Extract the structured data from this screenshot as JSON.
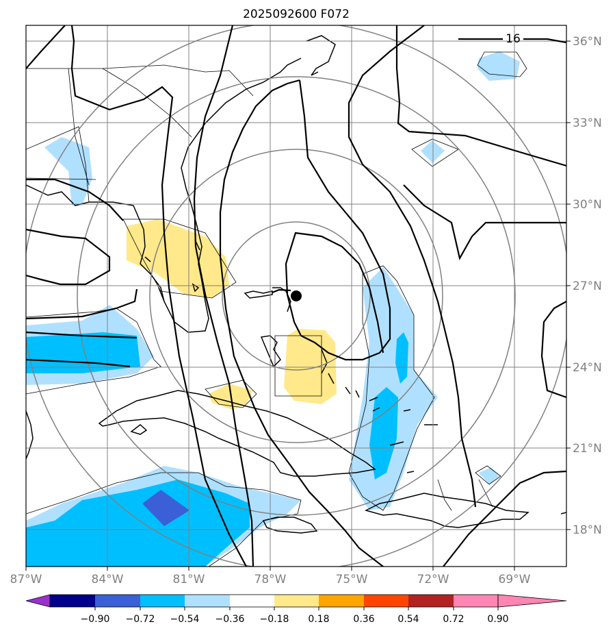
{
  "title": "2025092600 F072",
  "lat_labels": [
    "36°N",
    "33°N",
    "30°N",
    "27°N",
    "24°N",
    "21°N",
    "18°N"
  ],
  "lon_labels": [
    "87°W",
    "84°W",
    "81°W",
    "78°W",
    "75°W",
    "72°W",
    "69°W"
  ],
  "contour_label": "16",
  "colorbar": {
    "colors": [
      "#9932cc",
      "#00008b",
      "#3b5fd6",
      "#00bfff",
      "#b0e0ff",
      "#ffffff",
      "#ffe98a",
      "#ffa500",
      "#ff4500",
      "#b22222",
      "#ff85b3"
    ],
    "tick_labels": [
      "−0.90",
      "−0.72",
      "−0.54",
      "−0.36",
      "−0.18",
      "0.18",
      "0.36",
      "0.54",
      "0.72",
      "0.90"
    ]
  }
}
